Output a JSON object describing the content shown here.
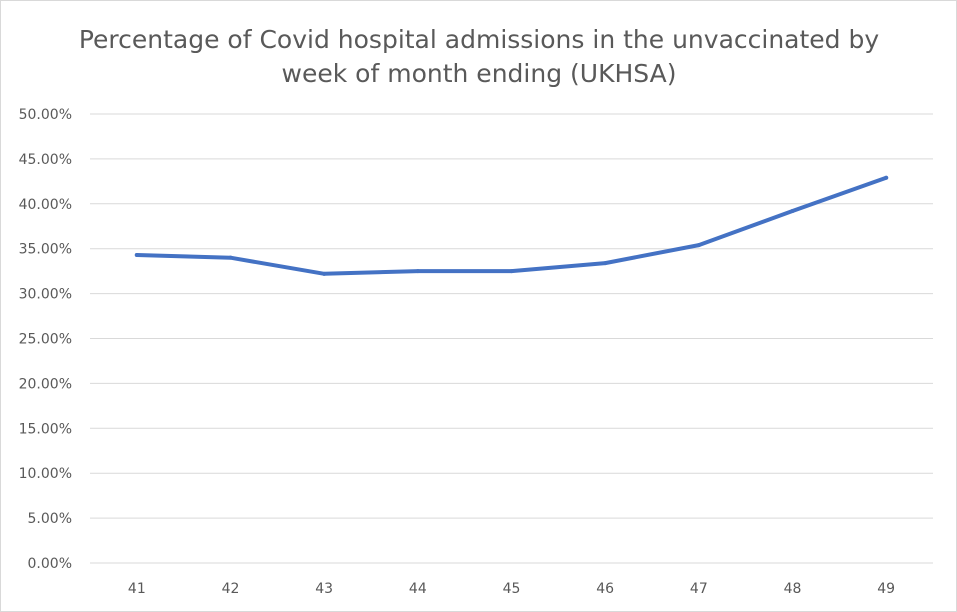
{
  "chart_data": {
    "type": "line",
    "title": "Percentage of Covid hospital admissions in the unvaccinated by week of month ending (UKHSA)",
    "title_lines": [
      "Percentage of Covid hospital admissions in the unvaccinated by",
      "week of month ending (UKHSA)"
    ],
    "xlabel": "",
    "ylabel": "",
    "categories": [
      "41",
      "42",
      "43",
      "44",
      "45",
      "46",
      "47",
      "48",
      "49"
    ],
    "series": [
      {
        "values": [
          34.3,
          34.0,
          32.2,
          32.5,
          32.5,
          33.4,
          35.4,
          39.2,
          42.9
        ],
        "color": "#4472c4"
      }
    ],
    "ylim": [
      0,
      50
    ],
    "y_ticks": [
      0,
      5,
      10,
      15,
      20,
      25,
      30,
      35,
      40,
      45,
      50
    ],
    "y_tick_labels": [
      "0.00%",
      "5.00%",
      "10.00%",
      "15.00%",
      "20.00%",
      "25.00%",
      "30.00%",
      "35.00%",
      "40.00%",
      "45.00%",
      "50.00%"
    ],
    "grid": true,
    "legend": "none",
    "colors": {
      "line": "#4472c4",
      "grid": "#d9d9d9",
      "text": "#595959"
    }
  }
}
